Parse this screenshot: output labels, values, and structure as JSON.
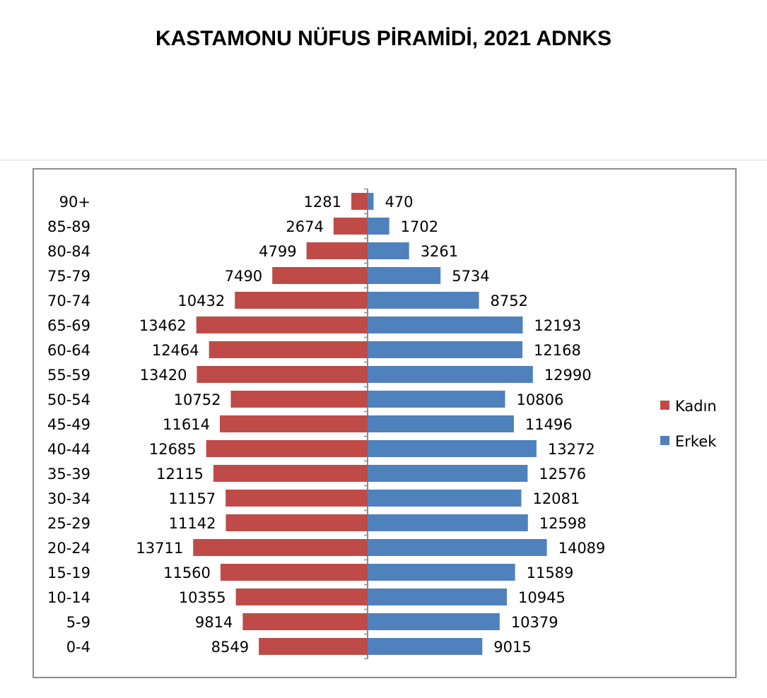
{
  "chart_data": {
    "type": "bar",
    "title": "KASTAMONU NÜFUS PİRAMİDİ, 2021 ADNKS",
    "categories": [
      "90+",
      "85-89",
      "80-84",
      "75-79",
      "70-74",
      "65-69",
      "60-64",
      "55-59",
      "50-54",
      "45-49",
      "40-44",
      "35-39",
      "30-34",
      "25-29",
      "20-24",
      "15-19",
      "10-14",
      "5-9",
      "0-4"
    ],
    "series": [
      {
        "name": "Kadın",
        "color": "#be4b48",
        "values": [
          1281,
          2674,
          4799,
          7490,
          10432,
          13462,
          12464,
          13420,
          10752,
          11614,
          12685,
          12115,
          11157,
          11142,
          13711,
          11560,
          10355,
          9814,
          8549
        ]
      },
      {
        "name": "Erkek",
        "color": "#4f81bd",
        "values": [
          470,
          1702,
          3261,
          5734,
          8752,
          12193,
          12168,
          12990,
          10806,
          11496,
          13272,
          12576,
          12081,
          12598,
          14089,
          11589,
          10945,
          10379,
          9015
        ]
      }
    ],
    "legend_position": "right",
    "grid": false,
    "orientation": "horizontal-diverging"
  }
}
